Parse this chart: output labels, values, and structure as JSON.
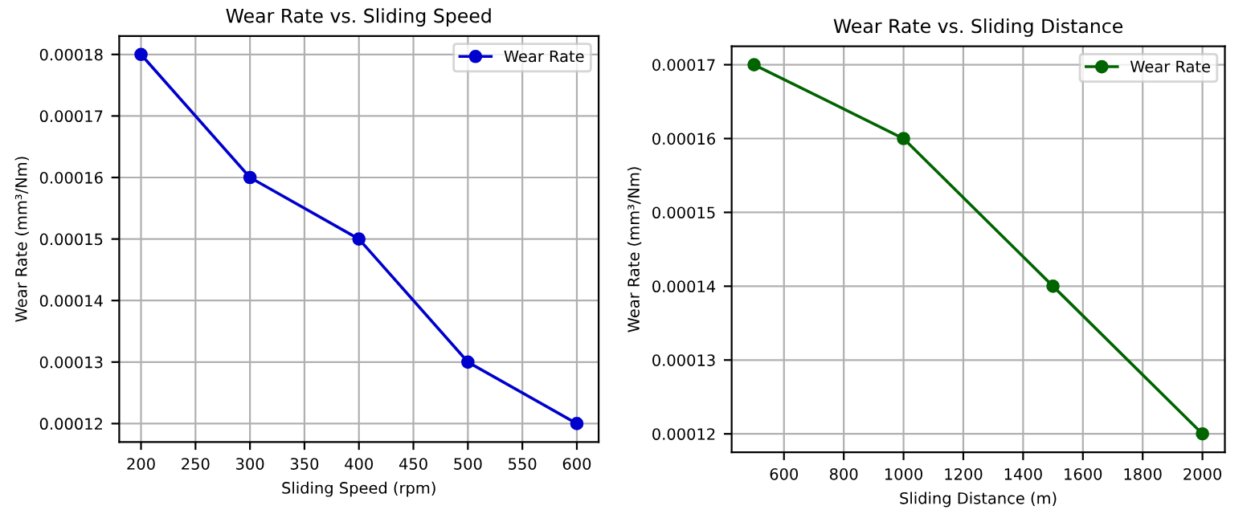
{
  "chart_data": [
    {
      "type": "line",
      "title": "Wear Rate vs. Sliding Speed",
      "xlabel": "Sliding Speed (rpm)",
      "ylabel": "Wear Rate (mm³/Nm)",
      "x": [
        200,
        300,
        400,
        500,
        600
      ],
      "series": [
        {
          "name": "Wear Rate",
          "color": "#0000cc",
          "values": [
            0.00018,
            0.00016,
            0.00015,
            0.00013,
            0.00012
          ]
        }
      ],
      "xlim": [
        180,
        620
      ],
      "xticks": [
        200,
        250,
        300,
        350,
        400,
        450,
        500,
        550,
        600
      ],
      "ylim": [
        0.000117,
        0.000183
      ],
      "yticks": [
        0.00012,
        0.00013,
        0.00014,
        0.00015,
        0.00016,
        0.00017,
        0.00018
      ],
      "grid": true,
      "legend": "top right",
      "marker": "circle",
      "line_style": "solid"
    },
    {
      "type": "line",
      "title": "Wear Rate vs. Sliding Distance",
      "xlabel": "Sliding Distance (m)",
      "ylabel": "Wear Rate (mm³/Nm)",
      "x": [
        500,
        1000,
        1500,
        2000
      ],
      "series": [
        {
          "name": "Wear Rate",
          "color": "#006400",
          "values": [
            0.00017,
            0.00016,
            0.00014,
            0.00012
          ]
        }
      ],
      "xlim": [
        425,
        2075
      ],
      "xticks": [
        600,
        800,
        1000,
        1200,
        1400,
        1600,
        1800,
        2000
      ],
      "ylim": [
        0.0001175,
        0.0001725
      ],
      "yticks": [
        0.00012,
        0.00013,
        0.00014,
        0.00015,
        0.00016,
        0.00017
      ],
      "grid": true,
      "legend": "top right",
      "marker": "circle",
      "line_style": "solid"
    }
  ]
}
